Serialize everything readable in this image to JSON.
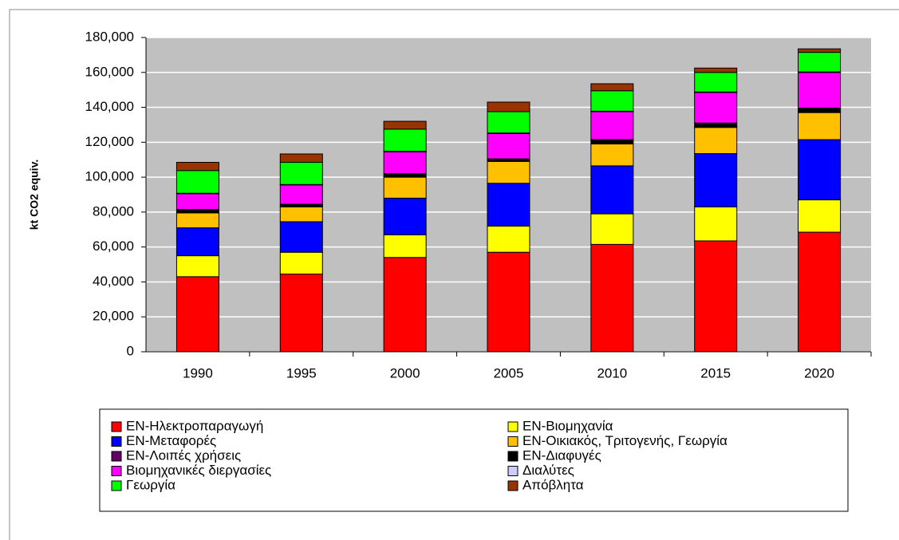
{
  "chart_data": {
    "type": "stacked_bar",
    "y_label": "kt CO2 equiv.",
    "categories": [
      "1990",
      "1995",
      "2000",
      "2005",
      "2010",
      "2015",
      "2020"
    ],
    "ylim": [
      0,
      180000
    ],
    "yticks": [
      0,
      {
        "value": 20000,
        "label": "20,000"
      },
      {
        "value": 40000,
        "label": "40,000"
      },
      {
        "value": 60000,
        "label": "60,000"
      },
      {
        "value": 80000,
        "label": "80,000"
      },
      {
        "value": 100000,
        "label": "100,000"
      },
      {
        "value": 120000,
        "label": "120,000"
      },
      {
        "value": 140000,
        "label": "140,000"
      },
      {
        "value": 160000,
        "label": "160,000"
      },
      {
        "value": 180000,
        "label": "180,000"
      }
    ],
    "grid": true,
    "series": [
      {
        "name": "ΕΝ-Ηλεκτροπαραγωγή",
        "color": "#ff0000",
        "values": [
          43000,
          44500,
          54000,
          57000,
          61500,
          63500,
          68500
        ]
      },
      {
        "name": "ΕΝ-Βιομηχανία",
        "color": "#ffff00",
        "values": [
          12000,
          12500,
          13000,
          15000,
          17500,
          19500,
          18500
        ]
      },
      {
        "name": "ΕΝ-Μεταφορές",
        "color": "#0000ff",
        "values": [
          16000,
          17500,
          21000,
          24500,
          27500,
          30500,
          34500
        ]
      },
      {
        "name": "ΕΝ-Οικιακός, Τριτογενής, Γεωργία",
        "color": "#ffc000",
        "values": [
          8500,
          8500,
          12000,
          12500,
          12500,
          15000,
          15500
        ]
      },
      {
        "name": "ΕΝ-Λοιπές χρήσεις",
        "color": "#660066",
        "values": [
          500,
          500,
          500,
          500,
          500,
          500,
          500
        ]
      },
      {
        "name": "ΕΝ-Διαφυγές",
        "color": "#000000",
        "values": [
          1500,
          1000,
          1500,
          1000,
          2000,
          2000,
          2000
        ]
      },
      {
        "name": "Βιομηχανικές διεργασίες",
        "color": "#ff00ff",
        "values": [
          9000,
          11000,
          12500,
          14500,
          16000,
          17500,
          20500
        ]
      },
      {
        "name": "Διαλύτες",
        "color": "#ccccff",
        "values": [
          300,
          300,
          300,
          300,
          300,
          300,
          300
        ]
      },
      {
        "name": "Γεωργία",
        "color": "#00ff00",
        "values": [
          13000,
          12700,
          12700,
          12200,
          11700,
          11200,
          11200
        ]
      },
      {
        "name": "Απόβλητα",
        "color": "#993300",
        "values": [
          4700,
          4800,
          4500,
          5500,
          4000,
          2500,
          2000
        ]
      }
    ]
  }
}
